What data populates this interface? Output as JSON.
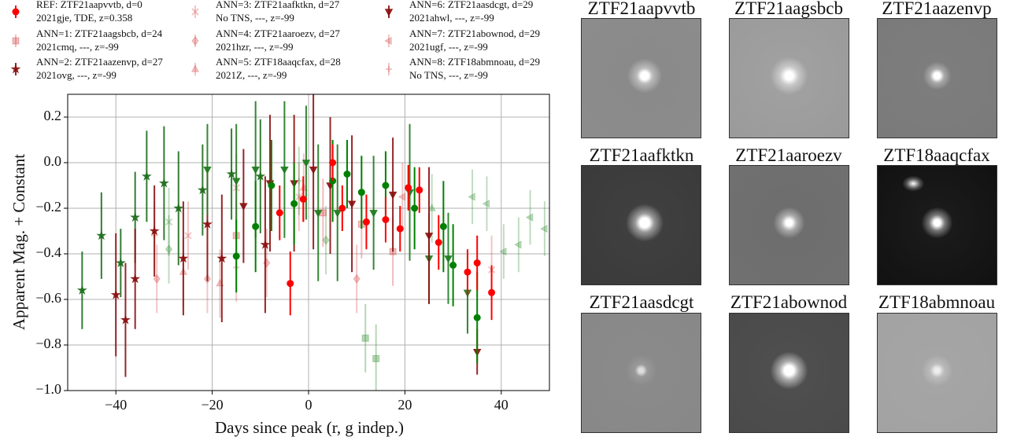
{
  "chart_data": {
    "type": "scatter",
    "xlabel": "Days since peak (r, g indep.)",
    "ylabel": "Apparent Mag. + Constant",
    "xlim": [
      -50,
      50
    ],
    "ylim": [
      -1.0,
      0.3
    ],
    "xticks": [
      {
        "value": -40,
        "label": "−40"
      },
      {
        "value": -20,
        "label": "−20"
      },
      0,
      20,
      40
    ],
    "yticks": [
      {
        "value": -1.0,
        "label": "−1.0"
      },
      {
        "value": -0.8,
        "label": "−0.8"
      },
      {
        "value": -0.6,
        "label": "−0.6"
      },
      {
        "value": -0.4,
        "label": "−0.4"
      },
      {
        "value": -0.2,
        "label": "−0.2"
      },
      {
        "value": 0.0,
        "label": "0.0"
      },
      0.2
    ],
    "grid": true,
    "series": [
      {
        "name": "REF: ZTF21aapvvtb, d=0",
        "description": "2021gje, TDE, z=0.358",
        "marker": "circle",
        "alpha": 1,
        "r": {
          "color": "#ff0000",
          "x": [
            -6,
            -3.8,
            -1.1,
            5,
            7,
            12,
            16,
            19,
            20.7,
            23,
            27,
            33,
            35,
            38
          ],
          "values": [
            -0.22,
            -0.53,
            -0.16,
            0.0,
            -0.2,
            -0.26,
            -0.25,
            -0.29,
            -0.11,
            -0.12,
            -0.35,
            -0.48,
            -0.44,
            -0.57
          ],
          "errors": [
            0.12,
            0.14,
            0.1,
            0.08,
            0.1,
            0.12,
            0.1,
            0.1,
            0.1,
            0.1,
            0.12,
            0.1,
            0.12,
            0.12
          ]
        },
        "g": {
          "color": "#008000",
          "x": [
            -15,
            -11,
            -7.7,
            -3,
            5,
            8,
            11,
            16,
            22,
            28,
            30,
            35
          ],
          "values": [
            -0.41,
            -0.28,
            -0.1,
            -0.18,
            -0.08,
            -0.05,
            -0.13,
            -0.1,
            -0.2,
            -0.28,
            -0.45,
            -0.68
          ],
          "errors": [
            0.16,
            0.2,
            0.2,
            0.18,
            0.18,
            0.15,
            0.16,
            0.15,
            0.18,
            0.2,
            0.18,
            0.2
          ]
        }
      },
      {
        "name": "ANN=1: ZTF21aagsbcb, d=24",
        "description": "2021cmq, ---, z=-99",
        "marker": "square",
        "alpha": 0.35,
        "r": {
          "color": "#d44040",
          "x": [
            -15,
            3,
            11,
            17.5
          ],
          "values": [
            -0.32,
            -0.22,
            -0.27,
            -0.39
          ],
          "errors": [
            0.15,
            0.15,
            0.15,
            0.15
          ]
        },
        "g": {
          "color": "#2e8b2e",
          "x": [
            14,
            11.8
          ],
          "values": [
            -0.86,
            -0.77
          ],
          "errors": [
            0.15,
            0.15
          ]
        }
      },
      {
        "name": "ANN=2: ZTF21aazenvp, d=27",
        "description": "2021ovg, ---, z=-99",
        "marker": "star",
        "alpha": 0.9,
        "r": {
          "color": "#8b1010",
          "x": [
            -40,
            -38,
            -36,
            -32,
            -26,
            -21,
            -18,
            -9
          ],
          "values": [
            -0.58,
            -0.69,
            -0.51,
            -0.3,
            -0.42,
            -0.27,
            -0.42,
            -0.36
          ],
          "errors": [
            0.27,
            0.25,
            0.22,
            0.2,
            0.25,
            0.25,
            0.28,
            0.3
          ]
        },
        "g": {
          "color": "#1e6e1e",
          "x": [
            -47,
            -43,
            -39,
            -36,
            -33.6,
            -30,
            -27,
            -22,
            -16,
            -10
          ],
          "values": [
            -0.56,
            -0.32,
            -0.44,
            -0.24,
            -0.06,
            -0.09,
            -0.2,
            -0.12,
            -0.05,
            -0.06
          ],
          "errors": [
            0.17,
            0.19,
            0.15,
            0.2,
            0.2,
            0.25,
            0.25,
            0.2,
            0.2,
            0.25
          ]
        }
      },
      {
        "name": "ANN=3: ZTF21aafktkn, d=27",
        "description": "No TNS, ---, z=-99",
        "marker": "x",
        "alpha": 0.3,
        "r": {
          "color": "#d44040",
          "x": [
            -25,
            -15,
            -2,
            38
          ],
          "values": [
            -0.32,
            -0.11,
            -0.15,
            -0.47
          ],
          "errors": [
            0.15,
            0.15,
            0.15,
            0.15
          ]
        },
        "g": {
          "color": "#2e8b2e",
          "x": [
            -29
          ],
          "values": [
            -0.26
          ],
          "errors": [
            0.15
          ]
        }
      },
      {
        "name": "ANN=4: ZTF21aaroezv, d=27",
        "description": "2021hzr, ---, z=-99",
        "marker": "diamond",
        "alpha": 0.3,
        "r": {
          "color": "#d44040",
          "x": [
            -31.5,
            -21,
            -8.7,
            10
          ],
          "values": [
            -0.51,
            -0.51,
            -0.44,
            -0.51
          ],
          "errors": [
            0.15,
            0.15,
            0.15,
            0.15
          ]
        },
        "g": {
          "color": "#2e8b2e",
          "x": [
            -29,
            3.6
          ],
          "values": [
            -0.38,
            -0.34
          ],
          "errors": [
            0.15,
            0.15
          ]
        }
      },
      {
        "name": "ANN=5: ZTF18aaqcfax, d=28",
        "description": "2021Z, ---, z=-99",
        "marker": "triangle-up",
        "alpha": 0.3,
        "r": {
          "color": "#d44040",
          "x": [
            -26,
            -18.4,
            -1
          ],
          "values": [
            -0.48,
            -0.53,
            -0.11
          ],
          "errors": [
            0.15,
            0.15,
            0.15
          ]
        },
        "g": {
          "color": "#2e8b2e",
          "x": [
            25.6
          ],
          "values": [
            -0.2
          ],
          "errors": [
            0.15
          ]
        }
      },
      {
        "name": "ANN=6: ZTF21aasdcgt, d=29",
        "description": "2021ahwl, ---, z=-99",
        "marker": "triangle-down",
        "alpha": 0.9,
        "r": {
          "color": "#8b1010",
          "x": [
            -13.5,
            -8,
            -3,
            1,
            4.5,
            9,
            17.5,
            25,
            35
          ],
          "values": [
            -0.19,
            -0.09,
            -0.09,
            -0.03,
            -0.1,
            -0.18,
            -0.14,
            -0.32,
            -0.83
          ],
          "errors": [
            0.25,
            0.3,
            0.3,
            0.35,
            0.3,
            0.3,
            0.25,
            0.3,
            0.1
          ]
        },
        "g": {
          "color": "#1e7a1e",
          "x": [
            -21,
            -15,
            -11,
            -5,
            -0.5,
            2,
            6,
            13.5,
            21,
            25,
            29,
            33
          ],
          "values": [
            -0.03,
            -0.08,
            -0.03,
            -0.03,
            0.0,
            -0.22,
            -0.22,
            -0.22,
            -0.13,
            -0.42,
            -0.42,
            -0.57
          ],
          "errors": [
            0.2,
            0.25,
            0.3,
            0.3,
            0.25,
            0.3,
            0.3,
            0.25,
            0.3,
            0.2,
            0.2,
            0.18
          ]
        }
      },
      {
        "name": "ANN=7: ZTF21abownod, d=29",
        "description": "2021ugf, ---, z=-99",
        "marker": "triangle-left",
        "alpha": 0.3,
        "r": {
          "color": "#d44040",
          "x": [
            19.5
          ],
          "values": [
            -0.15
          ],
          "errors": [
            0.15
          ]
        },
        "g": {
          "color": "#2e8b2e",
          "x": [
            34,
            37,
            40.5,
            43.6,
            46,
            49
          ],
          "values": [
            -0.15,
            -0.18,
            -0.39,
            -0.36,
            -0.24,
            -0.29
          ],
          "errors": [
            0.12,
            0.12,
            0.12,
            0.12,
            0.12,
            0.12
          ]
        }
      },
      {
        "name": "ANN=8: ZTF18abmnoau, d=29",
        "description": "No TNS, ---, z=-99",
        "marker": "plus",
        "alpha": 0.3,
        "r": {
          "color": "#d44040",
          "x": [
            -32,
            -15
          ],
          "values": [
            -0.32,
            -0.46
          ],
          "errors": [
            0.15,
            0.15
          ]
        },
        "g": {
          "color": "#2e8b2e",
          "x": [
            -2
          ],
          "values": [
            -0.08
          ],
          "errors": [
            0.15
          ]
        }
      }
    ]
  },
  "cutouts": [
    {
      "title": "ZTF21aapvvtb"
    },
    {
      "title": "ZTF21aagsbcb"
    },
    {
      "title": "ZTF21aazenvp"
    },
    {
      "title": "ZTF21aafktkn"
    },
    {
      "title": "ZTF21aaroezv"
    },
    {
      "title": "ZTF18aaqcfax"
    },
    {
      "title": "ZTF21aasdcgt"
    },
    {
      "title": "ZTF21abownod"
    },
    {
      "title": "ZTF18abmnoau"
    }
  ]
}
